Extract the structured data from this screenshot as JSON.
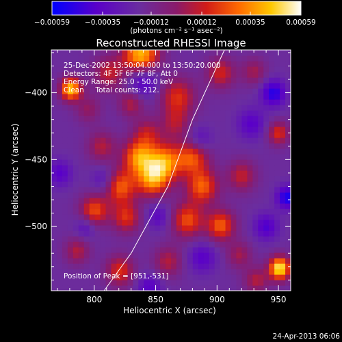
{
  "chart_data": {
    "type": "heatmap",
    "title": "Reconstructed RHESSI Image",
    "xlabel": "Heliocentric X (arcsec)",
    "ylabel": "Heliocentric Y (arcsec)",
    "xlim": [
      765,
      960
    ],
    "ylim": [
      -548,
      -368
    ],
    "x_ticks": [
      800,
      850,
      900,
      950
    ],
    "y_ticks": [
      -400,
      -450,
      -500
    ],
    "colorbar": {
      "range": [
        -0.00059,
        0.00059
      ],
      "tick_values": [
        -0.00059,
        -0.00035,
        -0.00012,
        0.00012,
        0.00035,
        0.00059
      ],
      "tick_labels": [
        "-0.00059",
        "-0.00035",
        "-0.00012",
        "0.00012",
        "0.00035",
        "0.00059"
      ],
      "unit_label": "(photons cm⁻² s⁻¹ asec⁻²)"
    },
    "info_lines": [
      "25-Dec-2002 13:50:04.000 to 13:50:20.000",
      "Detectors: 4F 5F 6F 7F 8F, Att 0",
      "Energy Range: 25.0 - 50.0 keV",
      "Clean     Total counts: 212."
    ],
    "peak_label": "Position of Peak = [951,-531]",
    "limb_curve": [
      [
        808,
        -548
      ],
      [
        830,
        -520
      ],
      [
        860,
        -470
      ],
      [
        880,
        -420
      ],
      [
        906,
        -368
      ]
    ],
    "blobs": [
      {
        "x": 781,
        "y": -397,
        "amp": 1.0,
        "s": 6
      },
      {
        "x": 838,
        "y": -372,
        "amp": 1.0,
        "s": 10
      },
      {
        "x": 812,
        "y": -385,
        "amp": 0.45,
        "s": 9
      },
      {
        "x": 795,
        "y": -412,
        "amp": 0.3,
        "s": 7
      },
      {
        "x": 830,
        "y": -408,
        "amp": 0.4,
        "s": 7
      },
      {
        "x": 868,
        "y": -403,
        "amp": 0.55,
        "s": 10
      },
      {
        "x": 903,
        "y": -385,
        "amp": 0.5,
        "s": 8
      },
      {
        "x": 930,
        "y": -384,
        "amp": 0.35,
        "s": 7
      },
      {
        "x": 843,
        "y": -430,
        "amp": 0.4,
        "s": 8
      },
      {
        "x": 866,
        "y": -423,
        "amp": 0.35,
        "s": 8
      },
      {
        "x": 806,
        "y": -440,
        "amp": 0.4,
        "s": 8
      },
      {
        "x": 836,
        "y": -448,
        "amp": 0.8,
        "s": 9
      },
      {
        "x": 857,
        "y": -452,
        "amp": 0.85,
        "s": 10
      },
      {
        "x": 880,
        "y": -448,
        "amp": 0.65,
        "s": 9
      },
      {
        "x": 950,
        "y": -430,
        "amp": 0.55,
        "s": 6
      },
      {
        "x": 821,
        "y": -470,
        "amp": 0.7,
        "s": 9
      },
      {
        "x": 847,
        "y": -465,
        "amp": 0.75,
        "s": 9
      },
      {
        "x": 888,
        "y": -470,
        "amp": 0.7,
        "s": 9
      },
      {
        "x": 920,
        "y": -462,
        "amp": 0.45,
        "s": 8
      },
      {
        "x": 800,
        "y": -488,
        "amp": 0.65,
        "s": 8
      },
      {
        "x": 826,
        "y": -493,
        "amp": 0.55,
        "s": 8
      },
      {
        "x": 876,
        "y": -495,
        "amp": 0.65,
        "s": 9
      },
      {
        "x": 903,
        "y": -499,
        "amp": 0.7,
        "s": 8
      },
      {
        "x": 786,
        "y": -518,
        "amp": 0.4,
        "s": 7
      },
      {
        "x": 821,
        "y": -533,
        "amp": 0.55,
        "s": 8
      },
      {
        "x": 860,
        "y": -526,
        "amp": 0.4,
        "s": 8
      },
      {
        "x": 918,
        "y": -521,
        "amp": 0.35,
        "s": 7
      },
      {
        "x": 951,
        "y": -531,
        "amp": 1.15,
        "s": 6
      },
      {
        "x": 932,
        "y": -540,
        "amp": 0.4,
        "s": 7
      },
      {
        "x": 840,
        "y": -390,
        "amp": -0.45,
        "s": 9
      },
      {
        "x": 946,
        "y": -400,
        "amp": -0.55,
        "s": 7
      },
      {
        "x": 928,
        "y": -423,
        "amp": -0.35,
        "s": 8
      },
      {
        "x": 886,
        "y": -435,
        "amp": -0.3,
        "s": 7
      },
      {
        "x": 808,
        "y": -465,
        "amp": -0.3,
        "s": 7
      },
      {
        "x": 957,
        "y": -478,
        "amp": -0.6,
        "s": 6
      },
      {
        "x": 852,
        "y": -492,
        "amp": -0.3,
        "s": 7
      },
      {
        "x": 793,
        "y": -500,
        "amp": -0.3,
        "s": 6
      },
      {
        "x": 940,
        "y": -500,
        "amp": -0.4,
        "s": 7
      },
      {
        "x": 888,
        "y": -523,
        "amp": -0.35,
        "s": 8
      },
      {
        "x": 845,
        "y": -545,
        "amp": -0.35,
        "s": 7
      },
      {
        "x": 772,
        "y": -460,
        "amp": -0.35,
        "s": 7
      }
    ]
  },
  "footer": {
    "date": "24-Apr-2013 06:06"
  }
}
